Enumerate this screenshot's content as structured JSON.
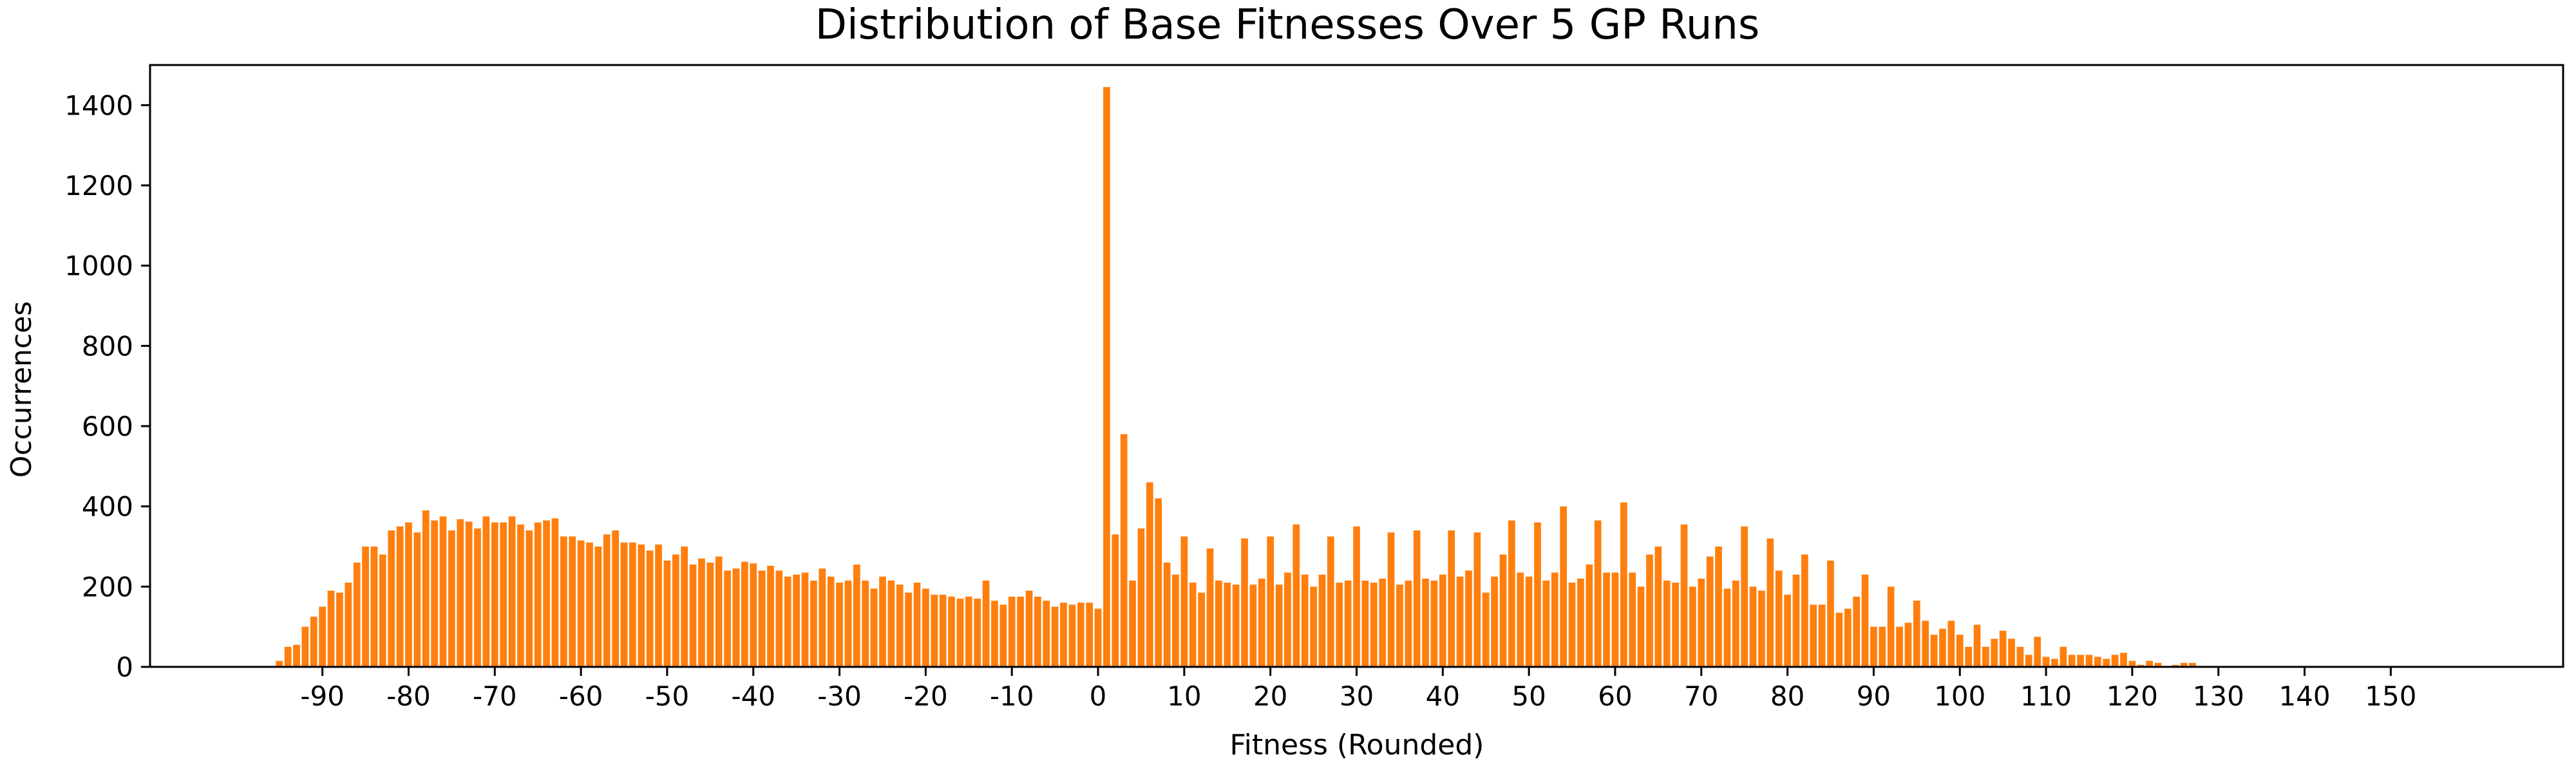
{
  "chart_data": {
    "type": "bar",
    "title": "Distribution of Base Fitnesses Over 5 GP Runs",
    "xlabel": "Fitness (Rounded)",
    "ylabel": "Occurrences",
    "xlim": [
      -110,
      170
    ],
    "ylim": [
      0,
      1500
    ],
    "x_ticks": [
      -90,
      -80,
      -70,
      -60,
      -50,
      -40,
      -30,
      -20,
      -10,
      0,
      10,
      20,
      30,
      40,
      50,
      60,
      70,
      80,
      90,
      100,
      110,
      120,
      130,
      140,
      150
    ],
    "y_ticks": [
      0,
      200,
      400,
      600,
      800,
      1000,
      1200,
      1400
    ],
    "bar_color": "#ff7f0e",
    "grid": false,
    "x_start": -95,
    "values": [
      15,
      50,
      55,
      100,
      125,
      150,
      190,
      185,
      210,
      260,
      300,
      300,
      280,
      340,
      350,
      360,
      335,
      390,
      365,
      375,
      340,
      368,
      362,
      345,
      375,
      360,
      360,
      375,
      355,
      340,
      360,
      365,
      370,
      325,
      325,
      315,
      310,
      300,
      330,
      340,
      310,
      310,
      305,
      290,
      305,
      265,
      280,
      300,
      255,
      270,
      260,
      275,
      240,
      245,
      262,
      258,
      240,
      252,
      240,
      225,
      230,
      235,
      215,
      245,
      225,
      210,
      215,
      255,
      215,
      195,
      225,
      215,
      205,
      185,
      210,
      195,
      180,
      180,
      175,
      170,
      175,
      170,
      215,
      165,
      155,
      175,
      175,
      190,
      175,
      165,
      150,
      160,
      155,
      160,
      160,
      145,
      1445,
      330,
      580,
      215,
      345,
      460,
      420,
      260,
      230,
      325,
      210,
      185,
      295,
      215,
      210,
      205,
      320,
      205,
      220,
      325,
      205,
      235,
      355,
      230,
      200,
      230,
      325,
      210,
      215,
      350,
      215,
      210,
      220,
      335,
      205,
      215,
      340,
      220,
      215,
      230,
      340,
      225,
      240,
      335,
      185,
      225,
      280,
      365,
      235,
      225,
      360,
      215,
      235,
      400,
      210,
      220,
      255,
      365,
      235,
      235,
      410,
      235,
      200,
      280,
      300,
      215,
      210,
      355,
      200,
      220,
      275,
      300,
      195,
      215,
      350,
      200,
      190,
      320,
      240,
      180,
      230,
      280,
      155,
      155,
      265,
      135,
      145,
      175,
      230,
      100,
      100,
      200,
      100,
      110,
      165,
      115,
      80,
      95,
      115,
      80,
      50,
      105,
      50,
      70,
      90,
      70,
      50,
      30,
      75,
      25,
      20,
      50,
      30,
      30,
      30,
      25,
      20,
      30,
      35,
      15,
      5,
      15,
      10,
      2,
      5,
      10,
      10,
      2
    ]
  }
}
